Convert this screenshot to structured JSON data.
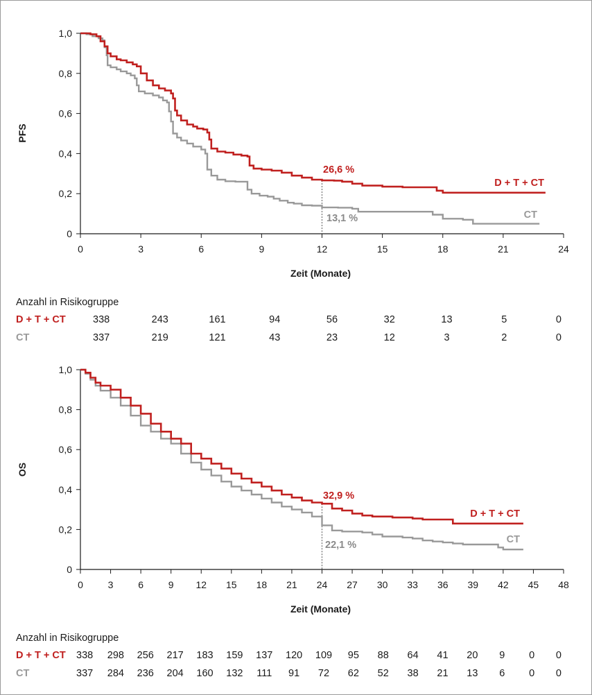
{
  "colors": {
    "dtct": "#c0201f",
    "ct": "#999999",
    "axis": "#1a1a1a"
  },
  "chart_data": [
    {
      "type": "line",
      "subtype": "kaplan-meier",
      "ylabel": "PFS",
      "xlabel": "Zeit (Monate)",
      "xlim": [
        0,
        24
      ],
      "ylim": [
        0,
        1
      ],
      "xticks": [
        0,
        3,
        6,
        9,
        12,
        15,
        18,
        21,
        24
      ],
      "xtick_labels": [
        "0",
        "3",
        "6",
        "9",
        "12",
        "15",
        "18",
        "21",
        "24"
      ],
      "yticks": [
        0,
        0.2,
        0.4,
        0.6,
        0.8,
        1.0
      ],
      "ytick_labels": [
        "0",
        "0,2",
        "0,4",
        "0,6",
        "0,8",
        "1,0"
      ],
      "landmark_x": 12,
      "series": [
        {
          "key": "dtct",
          "name": "D + T + CT",
          "annotation": "26,6 %",
          "points": [
            [
              0,
              1.0
            ],
            [
              0.2,
              1.0
            ],
            [
              0.5,
              0.995
            ],
            [
              0.8,
              0.985
            ],
            [
              1.0,
              0.96
            ],
            [
              1.2,
              0.935
            ],
            [
              1.35,
              0.9
            ],
            [
              1.5,
              0.885
            ],
            [
              1.8,
              0.87
            ],
            [
              2.0,
              0.865
            ],
            [
              2.3,
              0.855
            ],
            [
              2.6,
              0.845
            ],
            [
              2.8,
              0.835
            ],
            [
              3.0,
              0.8
            ],
            [
              3.3,
              0.765
            ],
            [
              3.6,
              0.74
            ],
            [
              3.9,
              0.725
            ],
            [
              4.2,
              0.715
            ],
            [
              4.5,
              0.7
            ],
            [
              4.6,
              0.675
            ],
            [
              4.7,
              0.615
            ],
            [
              4.8,
              0.59
            ],
            [
              5.0,
              0.565
            ],
            [
              5.3,
              0.545
            ],
            [
              5.6,
              0.535
            ],
            [
              5.8,
              0.525
            ],
            [
              6.1,
              0.52
            ],
            [
              6.3,
              0.505
            ],
            [
              6.4,
              0.47
            ],
            [
              6.5,
              0.425
            ],
            [
              6.8,
              0.41
            ],
            [
              7.2,
              0.405
            ],
            [
              7.6,
              0.395
            ],
            [
              8.0,
              0.39
            ],
            [
              8.3,
              0.385
            ],
            [
              8.4,
              0.34
            ],
            [
              8.6,
              0.325
            ],
            [
              9.0,
              0.32
            ],
            [
              9.5,
              0.315
            ],
            [
              10.0,
              0.305
            ],
            [
              10.5,
              0.29
            ],
            [
              11.0,
              0.28
            ],
            [
              11.5,
              0.27
            ],
            [
              12.0,
              0.266
            ],
            [
              12.6,
              0.265
            ],
            [
              13.0,
              0.26
            ],
            [
              13.5,
              0.25
            ],
            [
              14.0,
              0.24
            ],
            [
              15.0,
              0.235
            ],
            [
              16.0,
              0.232
            ],
            [
              17.0,
              0.232
            ],
            [
              17.6,
              0.232
            ],
            [
              17.7,
              0.215
            ],
            [
              18.0,
              0.205
            ],
            [
              19.0,
              0.205
            ],
            [
              21.0,
              0.205
            ],
            [
              23.1,
              0.205
            ]
          ]
        },
        {
          "key": "ct",
          "name": "CT",
          "annotation": "13,1 %",
          "points": [
            [
              0,
              1.0
            ],
            [
              0.3,
              0.995
            ],
            [
              0.6,
              0.985
            ],
            [
              0.9,
              0.975
            ],
            [
              1.1,
              0.965
            ],
            [
              1.2,
              0.93
            ],
            [
              1.3,
              0.89
            ],
            [
              1.35,
              0.84
            ],
            [
              1.5,
              0.83
            ],
            [
              1.8,
              0.82
            ],
            [
              2.0,
              0.81
            ],
            [
              2.3,
              0.8
            ],
            [
              2.5,
              0.79
            ],
            [
              2.7,
              0.775
            ],
            [
              2.8,
              0.74
            ],
            [
              2.9,
              0.71
            ],
            [
              3.2,
              0.7
            ],
            [
              3.6,
              0.69
            ],
            [
              3.9,
              0.68
            ],
            [
              4.1,
              0.665
            ],
            [
              4.3,
              0.655
            ],
            [
              4.4,
              0.61
            ],
            [
              4.5,
              0.56
            ],
            [
              4.6,
              0.5
            ],
            [
              4.8,
              0.48
            ],
            [
              5.0,
              0.465
            ],
            [
              5.3,
              0.45
            ],
            [
              5.6,
              0.435
            ],
            [
              6.0,
              0.42
            ],
            [
              6.2,
              0.4
            ],
            [
              6.3,
              0.32
            ],
            [
              6.5,
              0.29
            ],
            [
              6.8,
              0.27
            ],
            [
              7.2,
              0.262
            ],
            [
              7.7,
              0.26
            ],
            [
              8.0,
              0.26
            ],
            [
              8.2,
              0.26
            ],
            [
              8.3,
              0.22
            ],
            [
              8.5,
              0.2
            ],
            [
              8.9,
              0.19
            ],
            [
              9.3,
              0.185
            ],
            [
              9.6,
              0.175
            ],
            [
              9.9,
              0.165
            ],
            [
              10.3,
              0.155
            ],
            [
              10.6,
              0.15
            ],
            [
              11.0,
              0.142
            ],
            [
              11.5,
              0.14
            ],
            [
              12.0,
              0.131
            ],
            [
              12.8,
              0.13
            ],
            [
              13.5,
              0.125
            ],
            [
              13.8,
              0.11
            ],
            [
              15.0,
              0.11
            ],
            [
              16.5,
              0.11
            ],
            [
              17.4,
              0.11
            ],
            [
              17.5,
              0.095
            ],
            [
              18.0,
              0.075
            ],
            [
              19.0,
              0.07
            ],
            [
              19.4,
              0.07
            ],
            [
              19.5,
              0.05
            ],
            [
              21.0,
              0.05
            ],
            [
              22.8,
              0.05
            ]
          ]
        }
      ],
      "risk_table": {
        "title": "Anzahl in Risikogruppe",
        "rows": [
          {
            "key": "dtct",
            "label": "D + T + CT",
            "values": [
              "338",
              "243",
              "161",
              "94",
              "56",
              "32",
              "13",
              "5",
              "0"
            ]
          },
          {
            "key": "ct",
            "label": "CT",
            "values": [
              "337",
              "219",
              "121",
              "43",
              "23",
              "12",
              "3",
              "2",
              "0"
            ]
          }
        ]
      }
    },
    {
      "type": "line",
      "subtype": "kaplan-meier",
      "ylabel": "OS",
      "xlabel": "Zeit (Monate)",
      "xlim": [
        0,
        48
      ],
      "ylim": [
        0,
        1
      ],
      "xticks": [
        0,
        3,
        6,
        9,
        12,
        15,
        18,
        21,
        24,
        27,
        30,
        33,
        36,
        39,
        42,
        45,
        48
      ],
      "xtick_labels": [
        "0",
        "3",
        "6",
        "9",
        "12",
        "15",
        "18",
        "21",
        "24",
        "27",
        "30",
        "33",
        "36",
        "39",
        "42",
        "45",
        "48"
      ],
      "yticks": [
        0,
        0.2,
        0.4,
        0.6,
        0.8,
        1.0
      ],
      "ytick_labels": [
        "0",
        "0,2",
        "0,4",
        "0,6",
        "0,8",
        "1,0"
      ],
      "landmark_x": 24,
      "series": [
        {
          "key": "dtct",
          "name": "D + T + CT",
          "annotation": "32,9 %",
          "points": [
            [
              0,
              1.0
            ],
            [
              0.5,
              0.985
            ],
            [
              1,
              0.96
            ],
            [
              1.5,
              0.935
            ],
            [
              2,
              0.92
            ],
            [
              3,
              0.9
            ],
            [
              4,
              0.86
            ],
            [
              5,
              0.82
            ],
            [
              6,
              0.78
            ],
            [
              7,
              0.73
            ],
            [
              8,
              0.69
            ],
            [
              9,
              0.655
            ],
            [
              10,
              0.63
            ],
            [
              11,
              0.58
            ],
            [
              12,
              0.555
            ],
            [
              13,
              0.53
            ],
            [
              14,
              0.505
            ],
            [
              15,
              0.48
            ],
            [
              16,
              0.455
            ],
            [
              17,
              0.435
            ],
            [
              18,
              0.415
            ],
            [
              19,
              0.395
            ],
            [
              20,
              0.375
            ],
            [
              21,
              0.36
            ],
            [
              22,
              0.345
            ],
            [
              23,
              0.335
            ],
            [
              24,
              0.329
            ],
            [
              25,
              0.305
            ],
            [
              26,
              0.295
            ],
            [
              27,
              0.28
            ],
            [
              28,
              0.27
            ],
            [
              29,
              0.265
            ],
            [
              30,
              0.265
            ],
            [
              31,
              0.26
            ],
            [
              32,
              0.26
            ],
            [
              33,
              0.255
            ],
            [
              34,
              0.25
            ],
            [
              35,
              0.25
            ],
            [
              36,
              0.25
            ],
            [
              37,
              0.23
            ],
            [
              38,
              0.23
            ],
            [
              40,
              0.23
            ],
            [
              42,
              0.23
            ],
            [
              44,
              0.23
            ]
          ]
        },
        {
          "key": "ct",
          "name": "CT",
          "annotation": "22,1 %",
          "points": [
            [
              0,
              1.0
            ],
            [
              0.5,
              0.98
            ],
            [
              1,
              0.95
            ],
            [
              1.5,
              0.92
            ],
            [
              2,
              0.895
            ],
            [
              3,
              0.86
            ],
            [
              4,
              0.82
            ],
            [
              5,
              0.77
            ],
            [
              6,
              0.72
            ],
            [
              7,
              0.69
            ],
            [
              8,
              0.655
            ],
            [
              9,
              0.63
            ],
            [
              10,
              0.58
            ],
            [
              11,
              0.535
            ],
            [
              12,
              0.5
            ],
            [
              13,
              0.47
            ],
            [
              14,
              0.44
            ],
            [
              15,
              0.415
            ],
            [
              16,
              0.395
            ],
            [
              17,
              0.375
            ],
            [
              18,
              0.355
            ],
            [
              19,
              0.335
            ],
            [
              20,
              0.315
            ],
            [
              21,
              0.3
            ],
            [
              22,
              0.285
            ],
            [
              23,
              0.265
            ],
            [
              24,
              0.221
            ],
            [
              25,
              0.195
            ],
            [
              26,
              0.19
            ],
            [
              27,
              0.19
            ],
            [
              28,
              0.185
            ],
            [
              29,
              0.175
            ],
            [
              30,
              0.165
            ],
            [
              31,
              0.165
            ],
            [
              32,
              0.16
            ],
            [
              33,
              0.155
            ],
            [
              34,
              0.145
            ],
            [
              35,
              0.14
            ],
            [
              36,
              0.135
            ],
            [
              37,
              0.13
            ],
            [
              38,
              0.125
            ],
            [
              40,
              0.125
            ],
            [
              41,
              0.125
            ],
            [
              41.5,
              0.11
            ],
            [
              42,
              0.1
            ],
            [
              43,
              0.1
            ],
            [
              44,
              0.1
            ]
          ]
        }
      ],
      "risk_table": {
        "title": "Anzahl in Risikogruppe",
        "rows": [
          {
            "key": "dtct",
            "label": "D + T + CT",
            "values": [
              "338",
              "298",
              "256",
              "217",
              "183",
              "159",
              "137",
              "120",
              "109",
              "95",
              "88",
              "64",
              "41",
              "20",
              "9",
              "0",
              "0"
            ]
          },
          {
            "key": "ct",
            "label": "CT",
            "values": [
              "337",
              "284",
              "236",
              "204",
              "160",
              "132",
              "111",
              "91",
              "72",
              "62",
              "52",
              "38",
              "21",
              "13",
              "6",
              "0",
              "0"
            ]
          }
        ]
      }
    }
  ]
}
